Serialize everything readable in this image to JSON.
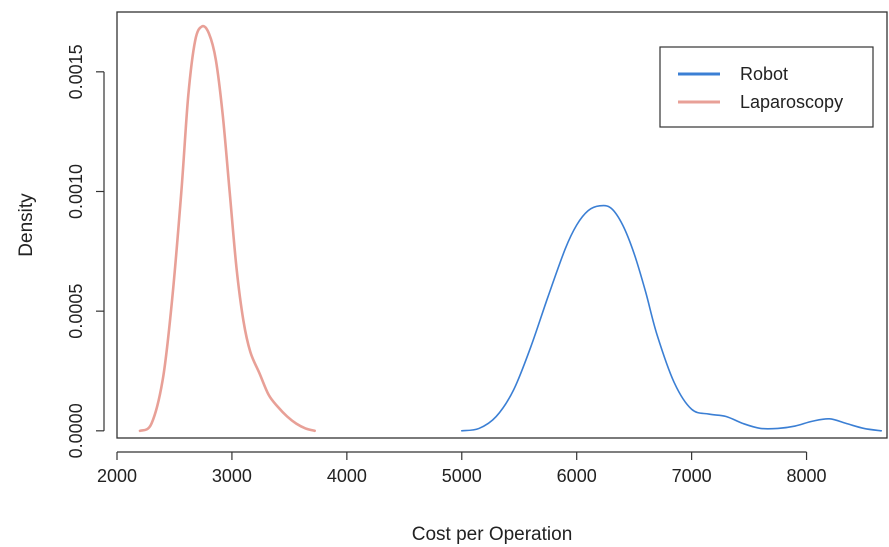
{
  "chart_data": {
    "type": "line",
    "title": "",
    "xlabel": "Cost per Operation",
    "ylabel": "Density",
    "xlim": [
      2000,
      8700
    ],
    "ylim": [
      -3e-05,
      0.00175
    ],
    "x_ticks": [
      2000,
      3000,
      4000,
      5000,
      6000,
      7000,
      8000
    ],
    "y_ticks": [
      0.0,
      0.0005,
      0.001,
      0.0015
    ],
    "x_tick_labels": [
      "2000",
      "3000",
      "4000",
      "5000",
      "6000",
      "7000",
      "8000"
    ],
    "y_tick_labels": [
      "0.0000",
      "0.0005",
      "0.0010",
      "0.0015"
    ],
    "grid": false,
    "legend_position": "top-right",
    "series": [
      {
        "name": "Robot",
        "color": "#3b7fd4",
        "x": [
          5000,
          5150,
          5300,
          5450,
          5600,
          5750,
          5900,
          6000,
          6100,
          6200,
          6300,
          6400,
          6500,
          6600,
          6700,
          6850,
          7000,
          7150,
          7300,
          7450,
          7600,
          7750,
          7900,
          8050,
          8200,
          8350,
          8500,
          8650
        ],
        "y": [
          0.0,
          1e-05,
          6e-05,
          0.00017,
          0.00035,
          0.00056,
          0.00076,
          0.00086,
          0.00092,
          0.00094,
          0.00093,
          0.00086,
          0.00074,
          0.00058,
          0.0004,
          0.0002,
          9e-05,
          7e-05,
          6e-05,
          3e-05,
          1e-05,
          1e-05,
          2e-05,
          4e-05,
          5e-05,
          3e-05,
          1e-05,
          0.0
        ]
      },
      {
        "name": "Laparoscopy",
        "color": "#e8a097",
        "x": [
          2200,
          2300,
          2400,
          2480,
          2560,
          2620,
          2680,
          2740,
          2800,
          2860,
          2920,
          2980,
          3040,
          3100,
          3160,
          3240,
          3320,
          3400,
          3480,
          3560,
          3640,
          3720
        ],
        "y": [
          0.0,
          3e-05,
          0.00022,
          0.00055,
          0.001,
          0.0014,
          0.00163,
          0.00169,
          0.00166,
          0.00155,
          0.00132,
          0.001,
          0.00068,
          0.00046,
          0.00033,
          0.00024,
          0.00015,
          0.0001,
          6e-05,
          3e-05,
          1e-05,
          0.0
        ]
      }
    ]
  }
}
